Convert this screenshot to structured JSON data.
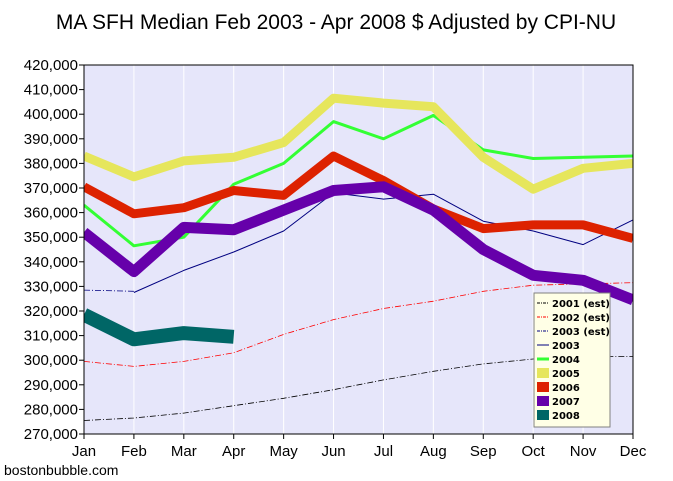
{
  "chart_data": {
    "type": "line",
    "title": "MA SFH Median Feb 2003 - Apr 2008 $ Adjusted by CPI-NU",
    "credit": "bostonbubble.com",
    "categories": [
      "Jan",
      "Feb",
      "Mar",
      "Apr",
      "May",
      "Jun",
      "Jul",
      "Aug",
      "Sep",
      "Oct",
      "Nov",
      "Dec"
    ],
    "ylim": [
      270000,
      420000
    ],
    "yticks": [
      {
        "value": 270000,
        "label": "270,000"
      },
      {
        "value": 280000,
        "label": "280,000"
      },
      {
        "value": 290000,
        "label": "290,000"
      },
      {
        "value": 300000,
        "label": "300,000"
      },
      {
        "value": 310000,
        "label": "310,000"
      },
      {
        "value": 320000,
        "label": "320,000"
      },
      {
        "value": 330000,
        "label": "330,000"
      },
      {
        "value": 340000,
        "label": "340,000"
      },
      {
        "value": 350000,
        "label": "350,000"
      },
      {
        "value": 360000,
        "label": "360,000"
      },
      {
        "value": 370000,
        "label": "370,000"
      },
      {
        "value": 380000,
        "label": "380,000"
      },
      {
        "value": 390000,
        "label": "390,000"
      },
      {
        "value": 400000,
        "label": "400,000"
      },
      {
        "value": 410000,
        "label": "410,000"
      },
      {
        "value": 420000,
        "label": "420,000"
      }
    ],
    "grid": "vertical",
    "legend_position": "bottom-right",
    "plot_background": "#e6e6fa",
    "series": [
      {
        "name": "2001 (est)",
        "color": "#000000",
        "style": "dashdot",
        "weight": 0.8,
        "values": [
          275500,
          276500,
          278500,
          281500,
          284500,
          288000,
          292000,
          295500,
          298500,
          300500,
          301500,
          301500
        ]
      },
      {
        "name": "2002 (est)",
        "color": "#ff0000",
        "style": "dashdot",
        "weight": 0.8,
        "values": [
          299500,
          297500,
          299500,
          303000,
          310500,
          316500,
          321000,
          324000,
          328000,
          330500,
          331000,
          331500
        ]
      },
      {
        "name": "2003 (est)",
        "color": "#000080",
        "style": "dashdot",
        "weight": 0.8,
        "values": [
          328500,
          328000,
          null,
          null,
          null,
          null,
          null,
          null,
          null,
          null,
          null,
          null
        ]
      },
      {
        "name": "2003",
        "color": "#000080",
        "style": "solid",
        "weight": 1,
        "values": [
          null,
          327500,
          336500,
          344000,
          352500,
          368000,
          365500,
          367500,
          356500,
          352500,
          347000,
          357000
        ]
      },
      {
        "name": "2004",
        "color": "#33ff33",
        "style": "solid",
        "weight": 3,
        "values": [
          363000,
          346500,
          350000,
          371500,
          380000,
          397000,
          390000,
          399500,
          385500,
          382000,
          382500,
          383000
        ]
      },
      {
        "name": "2005",
        "color": "#e6e65c",
        "style": "solid",
        "weight": 9,
        "values": [
          383000,
          374500,
          381000,
          382500,
          388500,
          406500,
          404500,
          403000,
          382500,
          369500,
          378000,
          380000
        ]
      },
      {
        "name": "2006",
        "color": "#dd2200",
        "style": "solid",
        "weight": 9,
        "values": [
          370500,
          359500,
          362000,
          369000,
          367000,
          383000,
          373000,
          361500,
          353500,
          355000,
          355000,
          349500
        ]
      },
      {
        "name": "2007",
        "color": "#6600aa",
        "style": "solid",
        "weight": 11,
        "values": [
          352000,
          336000,
          354000,
          353000,
          361000,
          369000,
          370500,
          361000,
          345000,
          334500,
          332500,
          324500
        ]
      },
      {
        "name": "2008",
        "color": "#006666",
        "style": "solid",
        "weight": 14,
        "values": [
          318500,
          308500,
          311000,
          309500,
          null,
          null,
          null,
          null,
          null,
          null,
          null,
          null
        ]
      }
    ]
  }
}
